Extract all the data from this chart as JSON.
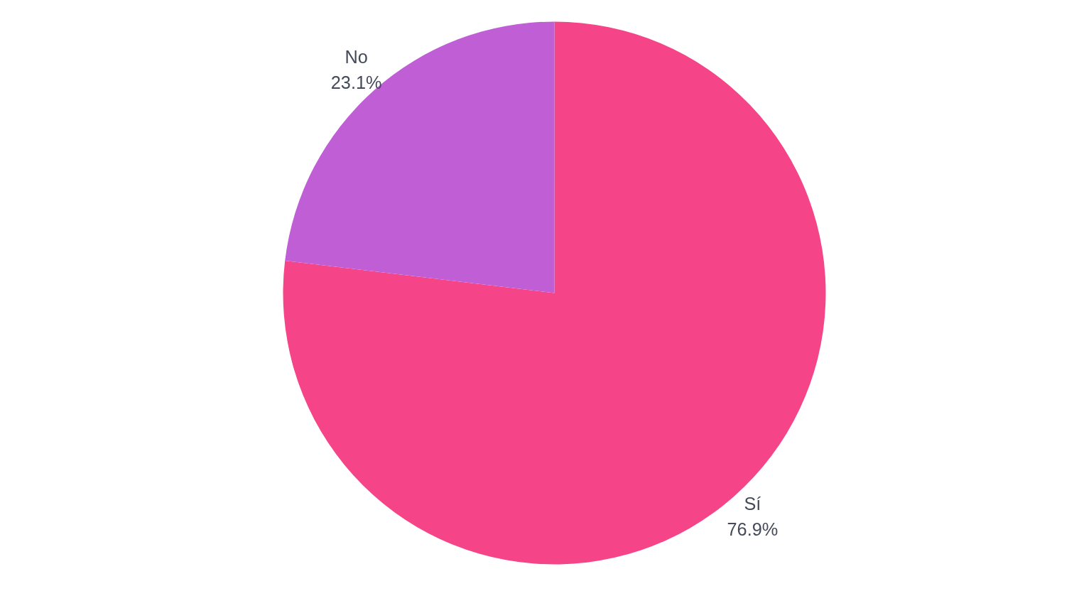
{
  "chart_data": {
    "type": "pie",
    "categories": [
      "Sí",
      "No"
    ],
    "values": [
      76.9,
      23.1
    ],
    "colors": [
      "#f54487",
      "#c05ed6"
    ],
    "value_labels": [
      "76.9%",
      "23.1%"
    ]
  }
}
